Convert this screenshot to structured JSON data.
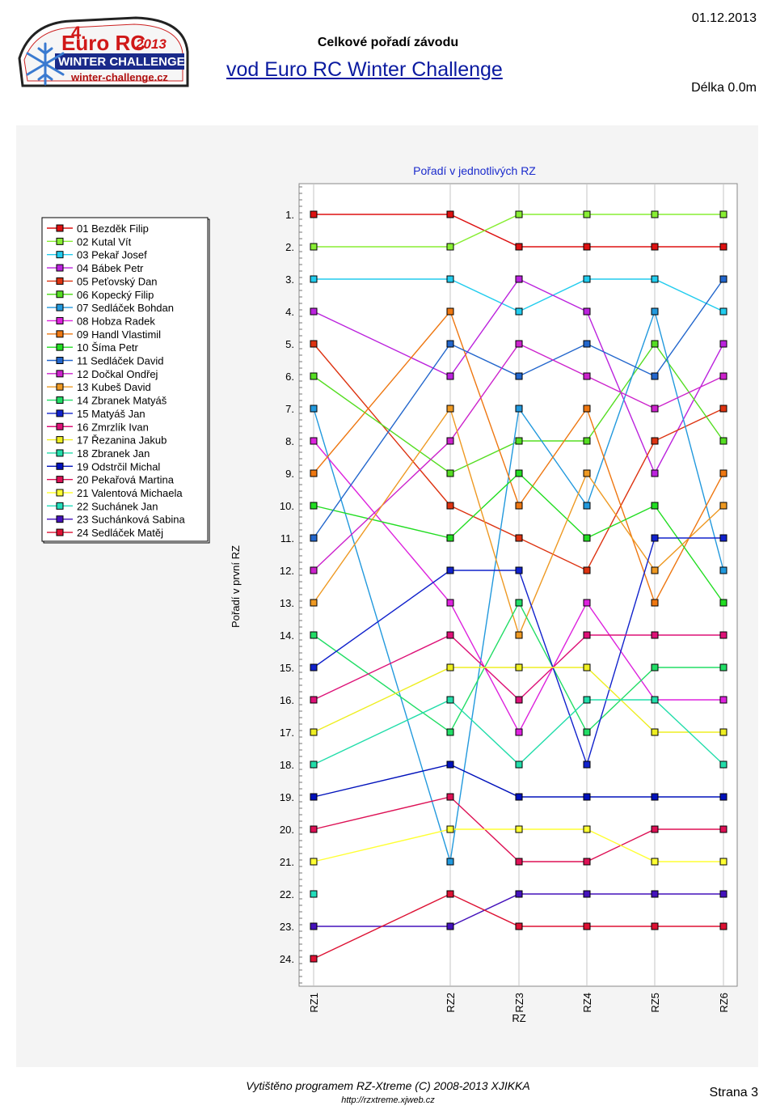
{
  "header": {
    "logo_number": "4.",
    "logo_brand": "Euro RC",
    "logo_year": "2013",
    "logo_event": "WINTER CHALLENGE",
    "logo_site": "winter-challenge.cz",
    "doc_title": "Celkové pořadí závodu",
    "race_title": "vod Euro RC Winter Challenge",
    "date": "01.12.2013",
    "length": "Délka 0.0m"
  },
  "footer": {
    "program": "Vytištěno programem RZ-Xtreme (C) 2008-2013  XJIKKA",
    "url": "http://rzxtreme.xjweb.cz",
    "page": "Strana 3"
  },
  "chart_data": {
    "type": "line",
    "title": "Pořadí v jednotlivých RZ",
    "ylabel": "Pořadí v první RZ",
    "x": [
      "RZ1",
      "RZ2",
      "RZ3",
      "RZ4",
      "RZ5",
      "RZ6"
    ],
    "x_extra_label": "RZ",
    "y_ticks": [
      "1.",
      "2.",
      "3.",
      "4.",
      "5.",
      "6.",
      "7.",
      "8.",
      "9.",
      "10.",
      "11.",
      "12.",
      "13.",
      "14.",
      "15.",
      "16.",
      "17.",
      "18.",
      "19.",
      "20.",
      "21.",
      "22.",
      "23.",
      "24."
    ],
    "ylim": [
      1,
      24
    ],
    "y_inverted": true,
    "legend_position": "left",
    "series": [
      {
        "name": "01 Bezděk Filip",
        "color": "#dd1111",
        "values": [
          1,
          1,
          2,
          2,
          2,
          2
        ]
      },
      {
        "name": "02 Kutal Vít",
        "color": "#88ee33",
        "values": [
          2,
          2,
          1,
          1,
          1,
          1
        ]
      },
      {
        "name": "03 Pekař Josef",
        "color": "#22ccee",
        "values": [
          3,
          3,
          4,
          3,
          3,
          4
        ]
      },
      {
        "name": "04 Bábek Petr",
        "color": "#bb22dd",
        "values": [
          4,
          6,
          3,
          4,
          9,
          5
        ]
      },
      {
        "name": "05 Peťovský Dan",
        "color": "#dd3311",
        "values": [
          5,
          10,
          11,
          12,
          8,
          7
        ]
      },
      {
        "name": "06 Kopecký Filip",
        "color": "#55dd22",
        "values": [
          6,
          9,
          8,
          8,
          5,
          8
        ]
      },
      {
        "name": "07 Sedláček Bohdan",
        "color": "#2299dd",
        "values": [
          7,
          21,
          7,
          10,
          4,
          12
        ]
      },
      {
        "name": "08 Hobza Radek",
        "color": "#dd22dd",
        "values": [
          8,
          13,
          17,
          13,
          16,
          16
        ]
      },
      {
        "name": "09 Handl Vlastimil",
        "color": "#ee7711",
        "values": [
          9,
          4,
          10,
          7,
          13,
          9
        ]
      },
      {
        "name": "10 Šíma Petr",
        "color": "#22dd22",
        "values": [
          10,
          11,
          9,
          11,
          10,
          13
        ]
      },
      {
        "name": "11 Sedláček David",
        "color": "#2266cc",
        "values": [
          11,
          5,
          6,
          5,
          6,
          3
        ]
      },
      {
        "name": "12 Dočkal Ondřej",
        "color": "#cc22cc",
        "values": [
          12,
          8,
          5,
          6,
          7,
          6
        ]
      },
      {
        "name": "13 Kubeš David",
        "color": "#ee9922",
        "values": [
          13,
          7,
          14,
          9,
          12,
          10
        ]
      },
      {
        "name": "14 Zbranek Matyáš",
        "color": "#22dd66",
        "values": [
          14,
          17,
          13,
          17,
          15,
          15
        ]
      },
      {
        "name": "15 Matyáš Jan",
        "color": "#1122cc",
        "values": [
          15,
          12,
          12,
          18,
          11,
          11
        ]
      },
      {
        "name": "16 Zmrzlík Ivan",
        "color": "#dd1177",
        "values": [
          16,
          14,
          16,
          14,
          14,
          14
        ]
      },
      {
        "name": "17 Řezanina Jakub",
        "color": "#eeee22",
        "values": [
          17,
          15,
          15,
          15,
          17,
          17
        ]
      },
      {
        "name": "18 Zbranek Jan",
        "color": "#22ddaa",
        "values": [
          18,
          16,
          18,
          16,
          16,
          18
        ]
      },
      {
        "name": "19 Odstrčil Michal",
        "color": "#0011bb",
        "values": [
          19,
          18,
          19,
          19,
          19,
          19
        ]
      },
      {
        "name": "20 Pekařová Martina",
        "color": "#dd1155",
        "values": [
          20,
          19,
          21,
          21,
          20,
          20
        ]
      },
      {
        "name": "21 Valentová Michaela",
        "color": "#ffff33",
        "values": [
          21,
          20,
          20,
          20,
          21,
          21
        ]
      },
      {
        "name": "22 Suchánek Jan",
        "color": "#22ddbb",
        "values": [
          22,
          null,
          null,
          null,
          null,
          null
        ]
      },
      {
        "name": "23 Suchánková Sabina",
        "color": "#4411bb",
        "values": [
          23,
          23,
          22,
          22,
          22,
          22
        ]
      },
      {
        "name": "24 Sedláček Matěj",
        "color": "#dd1133",
        "values": [
          24,
          22,
          23,
          23,
          23,
          23
        ]
      }
    ]
  }
}
